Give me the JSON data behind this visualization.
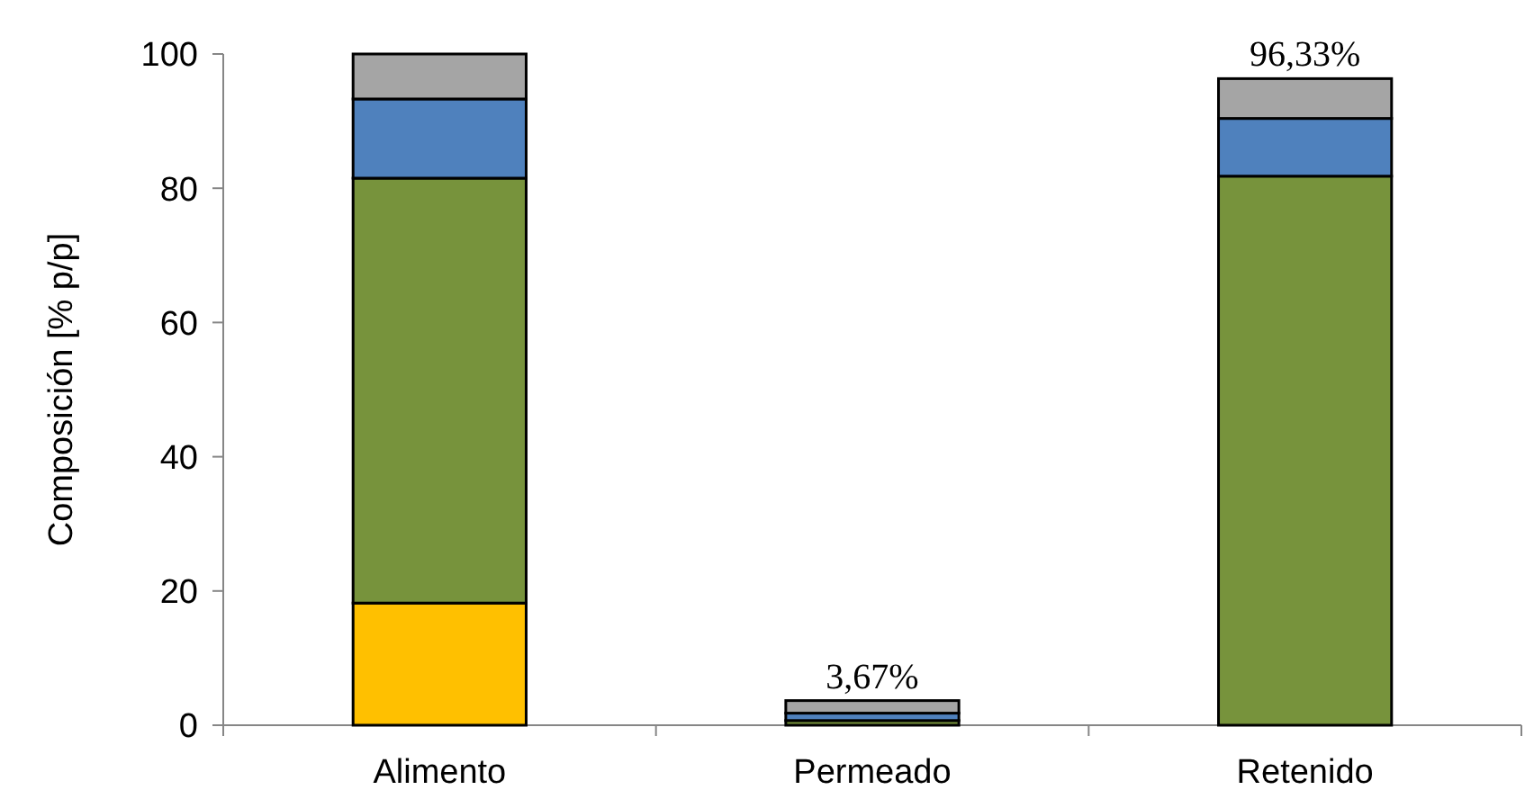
{
  "chart_data": {
    "type": "bar",
    "stacked": true,
    "ylabel": "Composición [% p/p]",
    "categories": [
      "Alimento",
      "Permeado",
      "Retenido"
    ],
    "series": [
      {
        "color": "#ffc000",
        "values": [
          18.2,
          null,
          null
        ]
      },
      {
        "color": "#77933c",
        "values": [
          63.3,
          0.7,
          81.8
        ]
      },
      {
        "color": "#4f81bd",
        "values": [
          11.8,
          1.1,
          8.6
        ]
      },
      {
        "color": "#a5a5a5",
        "values": [
          6.7,
          1.87,
          5.93
        ]
      }
    ],
    "ylim": [
      0,
      100
    ],
    "yticks": [
      0,
      20,
      40,
      60,
      80,
      100
    ],
    "totals": [
      null,
      "3,67%",
      "96,33%"
    ]
  }
}
